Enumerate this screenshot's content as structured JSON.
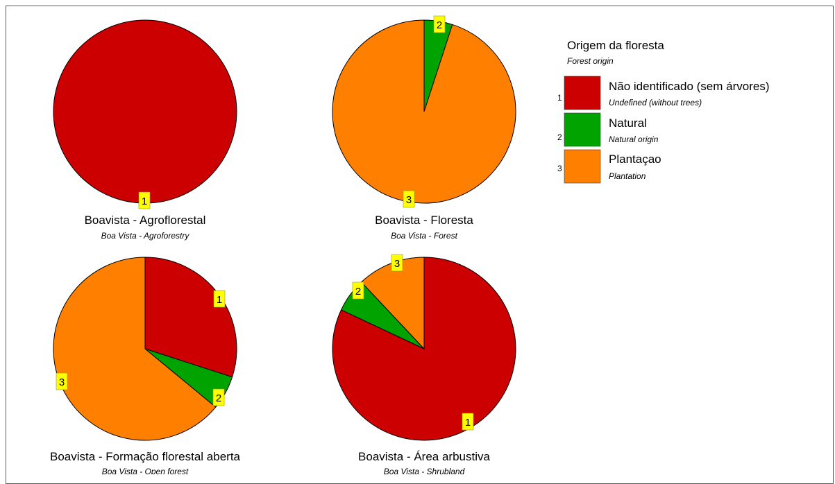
{
  "legend": {
    "title": "Origem da floresta",
    "subtitle": "Forest origin",
    "items": [
      {
        "num": "1",
        "label": "Não identificado (sem árvores)",
        "sublabel": "Undefined (without trees)",
        "color": "#cc0000"
      },
      {
        "num": "2",
        "label": "Natural",
        "sublabel": "Natural origin",
        "color": "#00a300"
      },
      {
        "num": "3",
        "label": "Plantaçao",
        "sublabel": "Plantation",
        "color": "#ff7f00"
      }
    ]
  },
  "chart_data": [
    {
      "type": "pie",
      "title": "Boavista - Agroflorestal",
      "subtitle": "Boa Vista - Agroforestry",
      "slices": [
        {
          "category": "1",
          "value": 100
        }
      ]
    },
    {
      "type": "pie",
      "title": "Boavista - Floresta",
      "subtitle": "Boa Vista - Forest",
      "slices": [
        {
          "category": "2",
          "value": 5
        },
        {
          "category": "3",
          "value": 95
        }
      ]
    },
    {
      "type": "pie",
      "title": "Boavista - Formação florestal aberta",
      "subtitle": "Boa Vista - Open forest",
      "slices": [
        {
          "category": "1",
          "value": 30
        },
        {
          "category": "2",
          "value": 6
        },
        {
          "category": "3",
          "value": 64
        }
      ]
    },
    {
      "type": "pie",
      "title": "Boavista - Área arbustiva",
      "subtitle": "Boa Vista - Shrubland",
      "slices": [
        {
          "category": "1",
          "value": 82
        },
        {
          "category": "2",
          "value": 6
        },
        {
          "category": "3",
          "value": 12
        }
      ]
    }
  ]
}
